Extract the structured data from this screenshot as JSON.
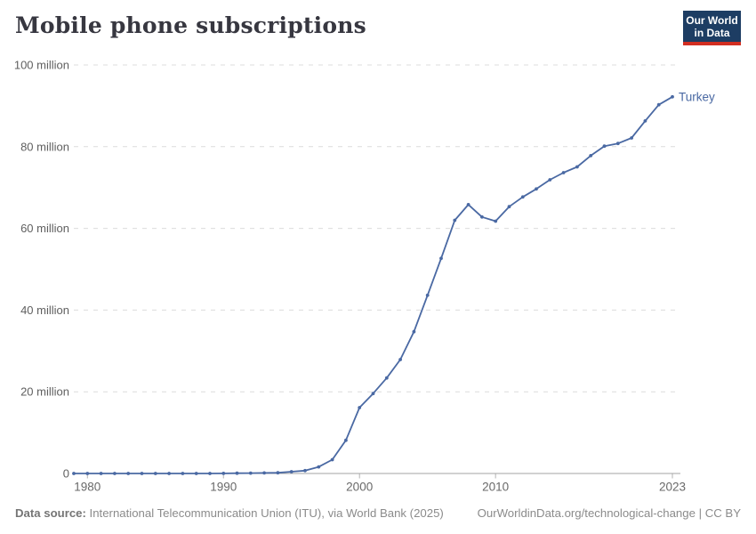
{
  "header": {
    "title": "Mobile phone subscriptions",
    "logo": {
      "line1": "Our World",
      "line2": "in Data"
    }
  },
  "chart_data": {
    "type": "line",
    "title": "Mobile phone subscriptions",
    "x": [
      1979,
      1980,
      1981,
      1982,
      1983,
      1984,
      1985,
      1986,
      1987,
      1988,
      1989,
      1990,
      1991,
      1992,
      1993,
      1994,
      1995,
      1996,
      1997,
      1998,
      1999,
      2000,
      2001,
      2002,
      2003,
      2004,
      2005,
      2006,
      2007,
      2008,
      2009,
      2010,
      2011,
      2012,
      2013,
      2014,
      2015,
      2016,
      2017,
      2018,
      2019,
      2020,
      2021,
      2022,
      2023
    ],
    "series": [
      {
        "name": "Turkey",
        "color": "#4a69a3",
        "values": [
          0,
          0,
          0,
          0,
          0,
          0,
          0,
          0,
          0,
          0,
          0.005,
          0.03,
          0.06,
          0.08,
          0.13,
          0.17,
          0.44,
          0.69,
          1.61,
          3.38,
          8.12,
          16.13,
          19.57,
          23.37,
          27.89,
          34.71,
          43.61,
          52.66,
          61.98,
          65.82,
          62.78,
          61.77,
          65.32,
          67.68,
          69.66,
          71.89,
          73.64,
          75.06,
          77.8,
          80.12,
          80.79,
          82.13,
          86.29,
          90.26,
          92.2
        ]
      }
    ],
    "x_ticks": [
      1980,
      1990,
      2000,
      2010,
      2023
    ],
    "y_ticks": [
      {
        "value": 0,
        "label": "0"
      },
      {
        "value": 20,
        "label": "20 million"
      },
      {
        "value": 40,
        "label": "40 million"
      },
      {
        "value": 60,
        "label": "60 million"
      },
      {
        "value": 80,
        "label": "80 million"
      },
      {
        "value": 100,
        "label": "100 million"
      }
    ],
    "xlim": [
      1979,
      2023
    ],
    "ylim": [
      0,
      100
    ],
    "xlabel": "",
    "ylabel": "",
    "grid": "horizontal-dashed",
    "legend_position": "end-of-line-label",
    "unit": "million"
  },
  "footer": {
    "source_bold": "Data source:",
    "source_rest": " International Telecommunication Union (ITU), via World Bank (2025)",
    "attribution": "OurWorldinData.org/technological-change | CC BY"
  },
  "colors": {
    "line": "#4a69a3",
    "entity_label": "#4a69a3",
    "logo_bg": "#1d3d63",
    "logo_red": "#d22e21",
    "grid": "#dcdcdc",
    "axis": "#a3a3a3",
    "tick": "#b3b3b3",
    "y_tick_label": "#5f5f5f",
    "x_tick_label": "#696969",
    "title": "#373740",
    "footer_text": "#8b8b8b"
  }
}
